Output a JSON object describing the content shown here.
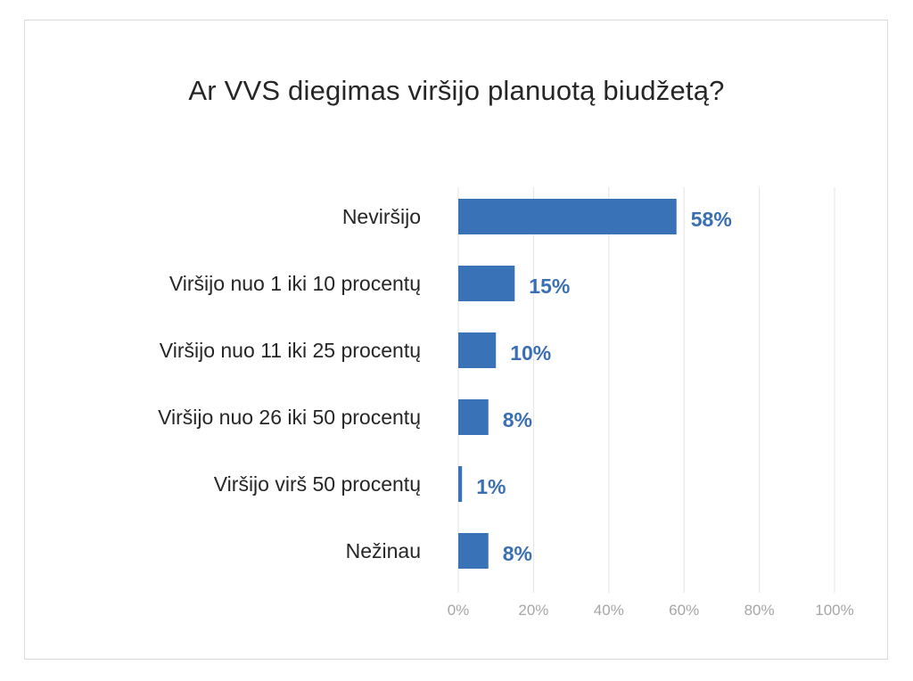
{
  "colors": {
    "bar": "#3a72b8",
    "value_label": "#3a6fb3",
    "gridline": "#e3e3e3",
    "tick_label": "#a6a6a6",
    "category_label": "#262626",
    "frame_border": "#d9d9d9"
  },
  "chart_data": {
    "type": "bar",
    "orientation": "horizontal",
    "title": "Ar VVS diegimas viršijo planuotą biudžetą?",
    "categories": [
      "Neviršijo",
      "Viršijo nuo 1 iki 10 procentų",
      "Viršijo nuo 11 iki 25 procentų",
      "Viršijo nuo 26 iki 50 procentų",
      "Viršijo virš 50 procentų",
      "Nežinau"
    ],
    "values": [
      58,
      15,
      10,
      8,
      1,
      8
    ],
    "value_labels": [
      "58%",
      "15%",
      "10%",
      "8%",
      "1%",
      "8%"
    ],
    "xlim": [
      0,
      100
    ],
    "x_ticks": [
      0,
      20,
      40,
      60,
      80,
      100
    ],
    "x_tick_labels": [
      "0%",
      "20%",
      "40%",
      "60%",
      "80%",
      "100%"
    ],
    "xlabel": "",
    "ylabel": "",
    "grid": "vertical",
    "legend": "none"
  }
}
